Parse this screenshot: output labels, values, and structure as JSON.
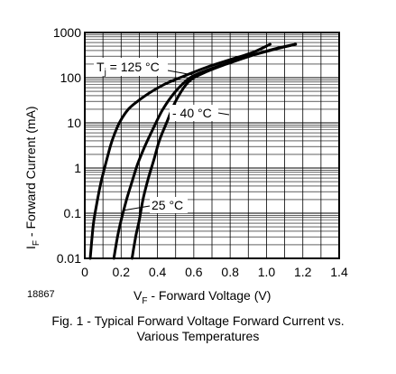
{
  "chart_data": {
    "type": "line",
    "x_scale": "linear",
    "y_scale": "log",
    "xlim": [
      0,
      1.4
    ],
    "ylim": [
      0.01,
      1000
    ],
    "x_ticks": [
      "0",
      "0.2",
      "0.4",
      "0.6",
      "0.8",
      "1.0",
      "1.2",
      "1.4"
    ],
    "y_ticks": [
      "0.01",
      "0.1",
      "1",
      "10",
      "100",
      "1000"
    ],
    "xlabel_main": "V",
    "xlabel_sub": "F",
    "xlabel_rest": " - Forward Voltage (V)",
    "ylabel_main": "I",
    "ylabel_sub": "F",
    "ylabel_rest": " - Forward Current (mA)",
    "grid": true,
    "figure_id": "18867",
    "caption_line1": "Fig. 1 - Typical Forward Voltage Forward Current vs.",
    "caption_line2": "Various Temperatures",
    "annotations": [
      {
        "text_main": "T",
        "text_sub": "j",
        "text_rest": " = 125 °C"
      },
      {
        "text_main": "- 40 °C"
      },
      {
        "text_main": "25 °C"
      }
    ],
    "series": [
      {
        "label_ref": "125 °C",
        "x": [
          0.03,
          0.04,
          0.05,
          0.07,
          0.09,
          0.12,
          0.15,
          0.19,
          0.24,
          0.3,
          0.37,
          0.45,
          0.55,
          0.67,
          0.8,
          0.93,
          1.02
        ],
        "y": [
          0.01,
          0.03,
          0.07,
          0.2,
          0.5,
          1.5,
          4,
          10,
          20,
          32,
          50,
          75,
          110,
          170,
          250,
          370,
          550
        ]
      },
      {
        "label_ref": "25 °C",
        "x": [
          0.16,
          0.18,
          0.2,
          0.23,
          0.26,
          0.29,
          0.33,
          0.38,
          0.43,
          0.5,
          0.58,
          0.68,
          0.8,
          0.93,
          1.05,
          1.16
        ],
        "y": [
          0.01,
          0.03,
          0.07,
          0.2,
          0.5,
          1.2,
          3,
          8,
          20,
          50,
          100,
          150,
          220,
          320,
          430,
          550
        ]
      },
      {
        "label_ref": "-40 °C",
        "x": [
          0.26,
          0.28,
          0.3,
          0.32,
          0.35,
          0.38,
          0.41,
          0.45,
          0.5,
          0.57,
          0.66,
          0.78,
          0.93,
          1.05,
          1.16
        ],
        "y": [
          0.01,
          0.03,
          0.07,
          0.2,
          0.6,
          1.5,
          4,
          10,
          30,
          80,
          130,
          200,
          320,
          440,
          550
        ]
      }
    ]
  }
}
